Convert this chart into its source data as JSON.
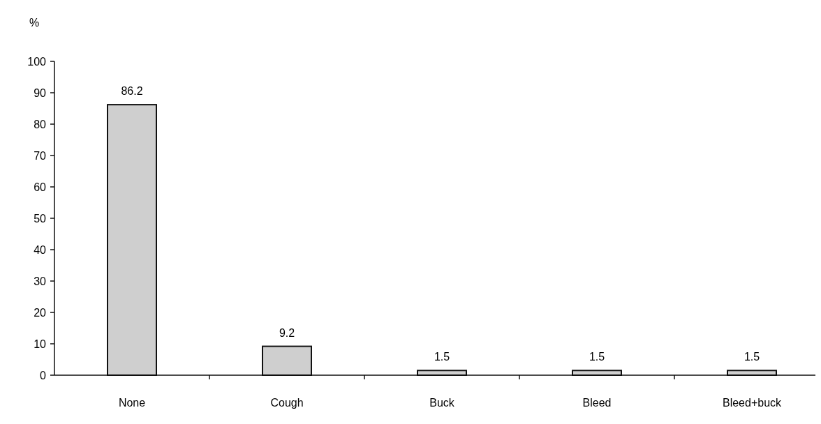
{
  "chart_data": {
    "type": "bar",
    "ylabel": "%",
    "categories": [
      "None",
      "Cough",
      "Buck",
      "Bleed",
      "Bleed+buck"
    ],
    "values": [
      86.2,
      9.2,
      1.5,
      1.5,
      1.5
    ],
    "color": "#cfcfcf",
    "ylim": [
      0,
      100
    ],
    "yticks": [
      0,
      10,
      20,
      30,
      40,
      50,
      60,
      70,
      80,
      90,
      100
    ],
    "data_labels": true,
    "grid": false
  }
}
